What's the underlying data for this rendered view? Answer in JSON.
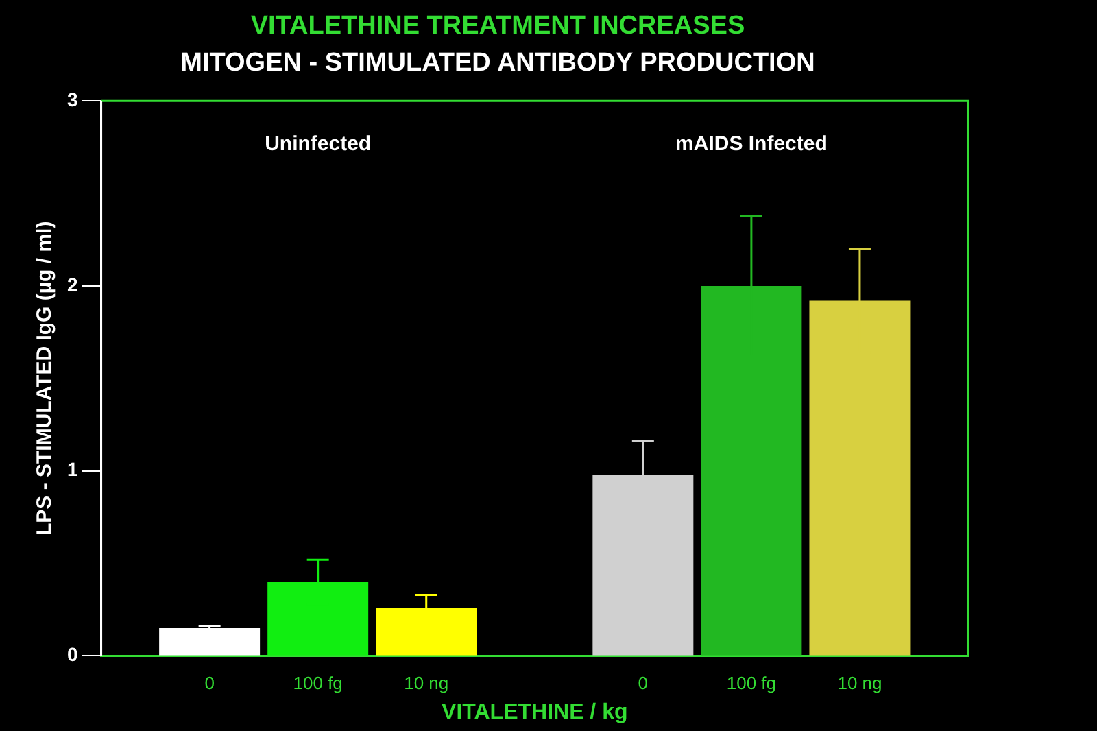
{
  "chart_data": {
    "type": "bar",
    "title": "VITALETHINE TREATMENT INCREASES",
    "subtitle": "MITOGEN - STIMULATED ANTIBODY PRODUCTION",
    "xlabel": "VITALETHINE / kg",
    "ylabel": "LPS - STIMULATED IgG (µg / ml)",
    "categories": [
      null,
      "0",
      "100 fg",
      "10 ng",
      null,
      "0",
      "100 fg",
      "10 ng",
      null
    ],
    "values": [
      null,
      0.15,
      0.4,
      0.26,
      null,
      0.98,
      2.0,
      1.92,
      null
    ],
    "errors": [
      null,
      0.01,
      0.12,
      0.07,
      null,
      0.18,
      0.38,
      0.28,
      null
    ],
    "colors": [
      "#ffffff",
      "#ffffff",
      "#11ee11",
      "#ffff00",
      "#ffffff",
      "#d0d0d0",
      "#22b822",
      "#d8d040",
      "#ffffff"
    ],
    "ylim": [
      0,
      3
    ],
    "yticks": [
      0,
      1,
      2,
      3
    ],
    "grid": false,
    "legend": false,
    "annotations": [
      "Uninfected",
      "mAIDS Infected"
    ]
  }
}
